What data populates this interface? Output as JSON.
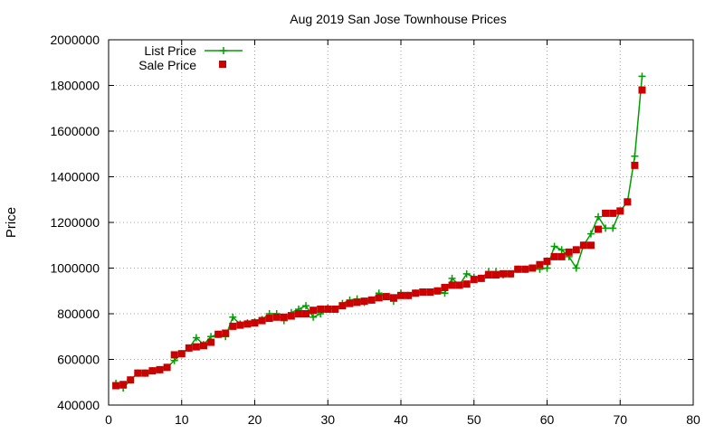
{
  "chart_data": {
    "type": "line",
    "title": "Aug 2019 San Jose Townhouse Prices",
    "xlabel": "",
    "ylabel": "Price",
    "xlim": [
      0,
      80
    ],
    "ylim": [
      400000,
      2000000
    ],
    "xticks": [
      0,
      10,
      20,
      30,
      40,
      50,
      60,
      70,
      80
    ],
    "yticks": [
      400000,
      600000,
      800000,
      1000000,
      1200000,
      1400000,
      1600000,
      1800000,
      2000000
    ],
    "grid": true,
    "legend_position": "top-left",
    "series": [
      {
        "name": "List Price",
        "style": "line+plus",
        "color": "#009e00",
        "x": [
          1,
          2,
          3,
          4,
          5,
          6,
          7,
          8,
          9,
          10,
          11,
          12,
          13,
          14,
          15,
          16,
          17,
          18,
          19,
          20,
          21,
          22,
          23,
          24,
          25,
          26,
          27,
          28,
          29,
          30,
          31,
          32,
          33,
          34,
          35,
          36,
          37,
          38,
          39,
          40,
          41,
          42,
          43,
          44,
          45,
          46,
          47,
          48,
          49,
          50,
          51,
          52,
          53,
          54,
          55,
          56,
          57,
          58,
          59,
          60,
          61,
          62,
          63,
          64,
          65,
          66,
          67,
          68,
          69,
          70,
          71,
          72,
          73
        ],
        "y": [
          495000,
          475000,
          510000,
          540000,
          540000,
          550000,
          555000,
          565000,
          595000,
          625000,
          650000,
          695000,
          665000,
          700000,
          710000,
          700000,
          785000,
          755000,
          760000,
          765000,
          775000,
          800000,
          800000,
          770000,
          805000,
          820000,
          835000,
          785000,
          800000,
          825000,
          820000,
          845000,
          860000,
          865000,
          850000,
          860000,
          890000,
          875000,
          855000,
          890000,
          880000,
          890000,
          895000,
          895000,
          900000,
          890000,
          955000,
          925000,
          975000,
          960000,
          955000,
          985000,
          985000,
          970000,
          975000,
          995000,
          995000,
          1000000,
          995000,
          1000000,
          1095000,
          1080000,
          1050000,
          1000000,
          1100000,
          1150000,
          1225000,
          1175000,
          1175000,
          1250000,
          1290000,
          1490000,
          1840000
        ]
      },
      {
        "name": "Sale Price",
        "style": "square",
        "color": "#cc0000",
        "x": [
          1,
          2,
          3,
          4,
          5,
          6,
          7,
          8,
          9,
          10,
          11,
          12,
          13,
          14,
          15,
          16,
          17,
          18,
          19,
          20,
          21,
          22,
          23,
          24,
          25,
          26,
          27,
          28,
          29,
          30,
          31,
          32,
          33,
          34,
          35,
          36,
          37,
          38,
          39,
          40,
          41,
          42,
          43,
          44,
          45,
          46,
          47,
          48,
          49,
          50,
          51,
          52,
          53,
          54,
          55,
          56,
          57,
          58,
          59,
          60,
          61,
          62,
          63,
          64,
          65,
          66,
          67,
          68,
          69,
          70,
          71,
          72,
          73
        ],
        "y": [
          485000,
          490000,
          510000,
          540000,
          540000,
          550000,
          555000,
          565000,
          620000,
          625000,
          650000,
          655000,
          660000,
          675000,
          710000,
          715000,
          745000,
          750000,
          755000,
          760000,
          770000,
          780000,
          785000,
          785000,
          790000,
          800000,
          800000,
          815000,
          820000,
          820000,
          820000,
          835000,
          845000,
          850000,
          855000,
          860000,
          870000,
          875000,
          870000,
          880000,
          880000,
          890000,
          895000,
          895000,
          900000,
          915000,
          925000,
          925000,
          930000,
          950000,
          955000,
          970000,
          970000,
          975000,
          975000,
          995000,
          995000,
          1000000,
          1015000,
          1030000,
          1050000,
          1050000,
          1070000,
          1080000,
          1100000,
          1100000,
          1170000,
          1240000,
          1240000,
          1250000,
          1290000,
          1450000,
          1780000
        ]
      }
    ]
  }
}
